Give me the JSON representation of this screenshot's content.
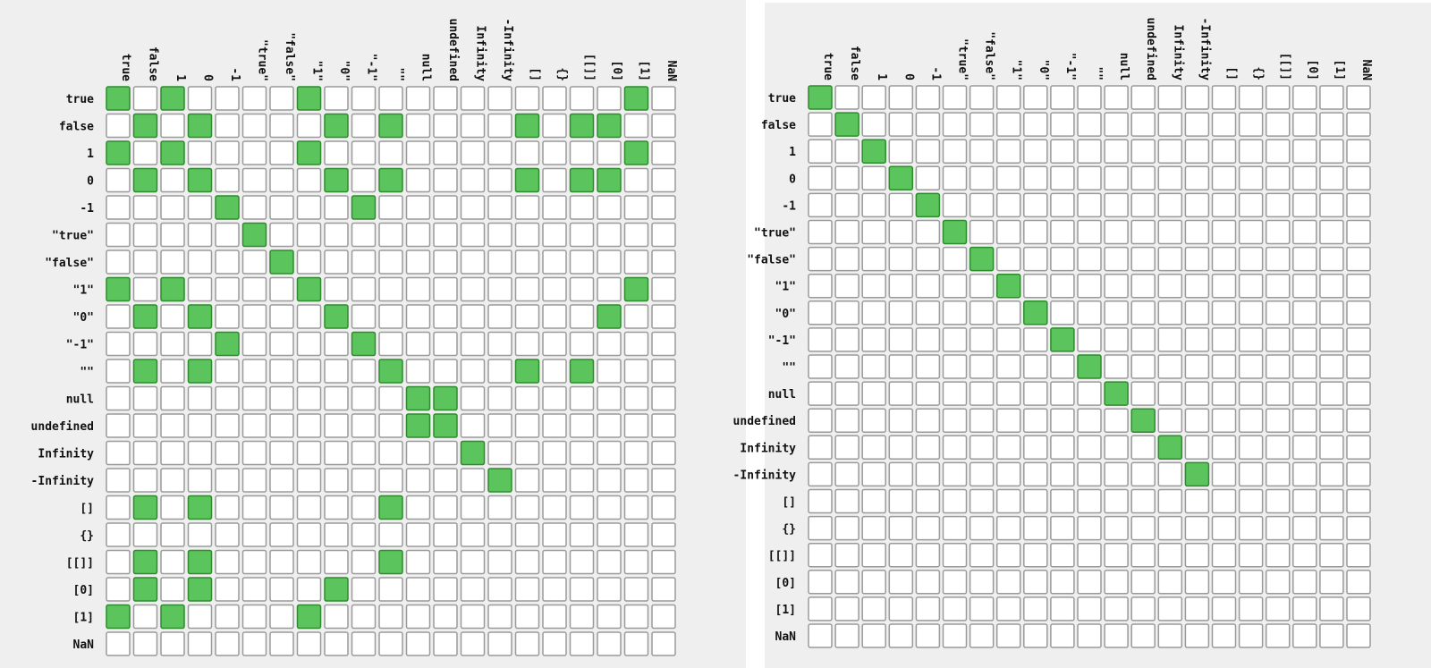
{
  "chart_data": [
    {
      "type": "heatmap",
      "title": "",
      "categories": [
        "true",
        "false",
        "1",
        "0",
        "-1",
        "\"true\"",
        "\"false\"",
        "\"1\"",
        "\"0\"",
        "\"-1\"",
        "\"\"",
        "null",
        "undefined",
        "Infinity",
        "-Infinity",
        "[]",
        "{}",
        "[[]]",
        "[0]",
        "[1]",
        "NaN"
      ],
      "values": [
        [
          1,
          0,
          1,
          0,
          0,
          0,
          0,
          1,
          0,
          0,
          0,
          0,
          0,
          0,
          0,
          0,
          0,
          0,
          0,
          1,
          0
        ],
        [
          0,
          1,
          0,
          1,
          0,
          0,
          0,
          0,
          1,
          0,
          1,
          0,
          0,
          0,
          0,
          1,
          0,
          1,
          1,
          0,
          0
        ],
        [
          1,
          0,
          1,
          0,
          0,
          0,
          0,
          1,
          0,
          0,
          0,
          0,
          0,
          0,
          0,
          0,
          0,
          0,
          0,
          1,
          0
        ],
        [
          0,
          1,
          0,
          1,
          0,
          0,
          0,
          0,
          1,
          0,
          1,
          0,
          0,
          0,
          0,
          1,
          0,
          1,
          1,
          0,
          0
        ],
        [
          0,
          0,
          0,
          0,
          1,
          0,
          0,
          0,
          0,
          1,
          0,
          0,
          0,
          0,
          0,
          0,
          0,
          0,
          0,
          0,
          0
        ],
        [
          0,
          0,
          0,
          0,
          0,
          1,
          0,
          0,
          0,
          0,
          0,
          0,
          0,
          0,
          0,
          0,
          0,
          0,
          0,
          0,
          0
        ],
        [
          0,
          0,
          0,
          0,
          0,
          0,
          1,
          0,
          0,
          0,
          0,
          0,
          0,
          0,
          0,
          0,
          0,
          0,
          0,
          0,
          0
        ],
        [
          1,
          0,
          1,
          0,
          0,
          0,
          0,
          1,
          0,
          0,
          0,
          0,
          0,
          0,
          0,
          0,
          0,
          0,
          0,
          1,
          0
        ],
        [
          0,
          1,
          0,
          1,
          0,
          0,
          0,
          0,
          1,
          0,
          0,
          0,
          0,
          0,
          0,
          0,
          0,
          0,
          1,
          0,
          0
        ],
        [
          0,
          0,
          0,
          0,
          1,
          0,
          0,
          0,
          0,
          1,
          0,
          0,
          0,
          0,
          0,
          0,
          0,
          0,
          0,
          0,
          0
        ],
        [
          0,
          1,
          0,
          1,
          0,
          0,
          0,
          0,
          0,
          0,
          1,
          0,
          0,
          0,
          0,
          1,
          0,
          1,
          0,
          0,
          0
        ],
        [
          0,
          0,
          0,
          0,
          0,
          0,
          0,
          0,
          0,
          0,
          0,
          1,
          1,
          0,
          0,
          0,
          0,
          0,
          0,
          0,
          0
        ],
        [
          0,
          0,
          0,
          0,
          0,
          0,
          0,
          0,
          0,
          0,
          0,
          1,
          1,
          0,
          0,
          0,
          0,
          0,
          0,
          0,
          0
        ],
        [
          0,
          0,
          0,
          0,
          0,
          0,
          0,
          0,
          0,
          0,
          0,
          0,
          0,
          1,
          0,
          0,
          0,
          0,
          0,
          0,
          0
        ],
        [
          0,
          0,
          0,
          0,
          0,
          0,
          0,
          0,
          0,
          0,
          0,
          0,
          0,
          0,
          1,
          0,
          0,
          0,
          0,
          0,
          0
        ],
        [
          0,
          1,
          0,
          1,
          0,
          0,
          0,
          0,
          0,
          0,
          1,
          0,
          0,
          0,
          0,
          0,
          0,
          0,
          0,
          0,
          0
        ],
        [
          0,
          0,
          0,
          0,
          0,
          0,
          0,
          0,
          0,
          0,
          0,
          0,
          0,
          0,
          0,
          0,
          0,
          0,
          0,
          0,
          0
        ],
        [
          0,
          1,
          0,
          1,
          0,
          0,
          0,
          0,
          0,
          0,
          1,
          0,
          0,
          0,
          0,
          0,
          0,
          0,
          0,
          0,
          0
        ],
        [
          0,
          1,
          0,
          1,
          0,
          0,
          0,
          0,
          1,
          0,
          0,
          0,
          0,
          0,
          0,
          0,
          0,
          0,
          0,
          0,
          0
        ],
        [
          1,
          0,
          1,
          0,
          0,
          0,
          0,
          1,
          0,
          0,
          0,
          0,
          0,
          0,
          0,
          0,
          0,
          0,
          0,
          0,
          0
        ],
        [
          0,
          0,
          0,
          0,
          0,
          0,
          0,
          0,
          0,
          0,
          0,
          0,
          0,
          0,
          0,
          0,
          0,
          0,
          0,
          0,
          0
        ]
      ],
      "legend": "none",
      "colors": {
        "on": "#5cc45c",
        "off": "#ffffff"
      }
    },
    {
      "type": "heatmap",
      "title": "",
      "categories": [
        "true",
        "false",
        "1",
        "0",
        "-1",
        "\"true\"",
        "\"false\"",
        "\"1\"",
        "\"0\"",
        "\"-1\"",
        "\"\"",
        "null",
        "undefined",
        "Infinity",
        "-Infinity",
        "[]",
        "{}",
        "[[]]",
        "[0]",
        "[1]",
        "NaN"
      ],
      "diagonal": [
        true,
        true,
        true,
        true,
        true,
        true,
        true,
        true,
        true,
        true,
        true,
        true,
        true,
        true,
        true,
        false,
        false,
        false,
        false,
        false,
        false
      ],
      "legend": "none",
      "colors": {
        "on": "#5cc45c",
        "off": "#ffffff"
      }
    }
  ]
}
